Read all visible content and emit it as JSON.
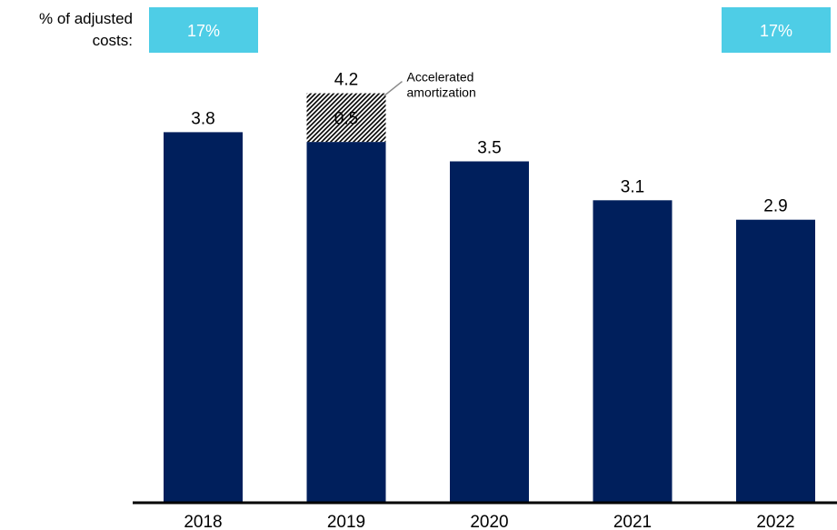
{
  "chart_data": {
    "type": "bar",
    "categories": [
      "2018",
      "2019",
      "2020",
      "2021",
      "2022"
    ],
    "series": [
      {
        "values": [
          3.8,
          3.7,
          3.5,
          3.1,
          2.9
        ]
      },
      {
        "name": "Accelerated amortization",
        "values": [
          0,
          0.5,
          0,
          0,
          0
        ]
      }
    ],
    "totals": [
      3.8,
      4.2,
      3.5,
      3.1,
      2.9
    ],
    "value_labels": [
      "3.8",
      "4.2",
      "3.5",
      "3.1",
      "2.9"
    ],
    "segment_labels": [
      "",
      "0.5",
      "",
      "",
      ""
    ],
    "ylim": [
      0,
      4.2
    ],
    "grid": false,
    "legend": "none",
    "annotation": {
      "text_line1": "Accelerated",
      "text_line2": "amortization",
      "category": "2019"
    },
    "percent_row": {
      "label_line1": "% of adjusted",
      "label_line2": "costs:",
      "boxes": [
        {
          "category": "2018",
          "value": "17%"
        },
        {
          "category": "2022",
          "value": "17%"
        }
      ]
    },
    "colors": {
      "bar": "#001f5c",
      "box": "#4ecde6",
      "hatch": "#000000",
      "axis": "#000000",
      "leader": "#8a8a8a"
    }
  }
}
